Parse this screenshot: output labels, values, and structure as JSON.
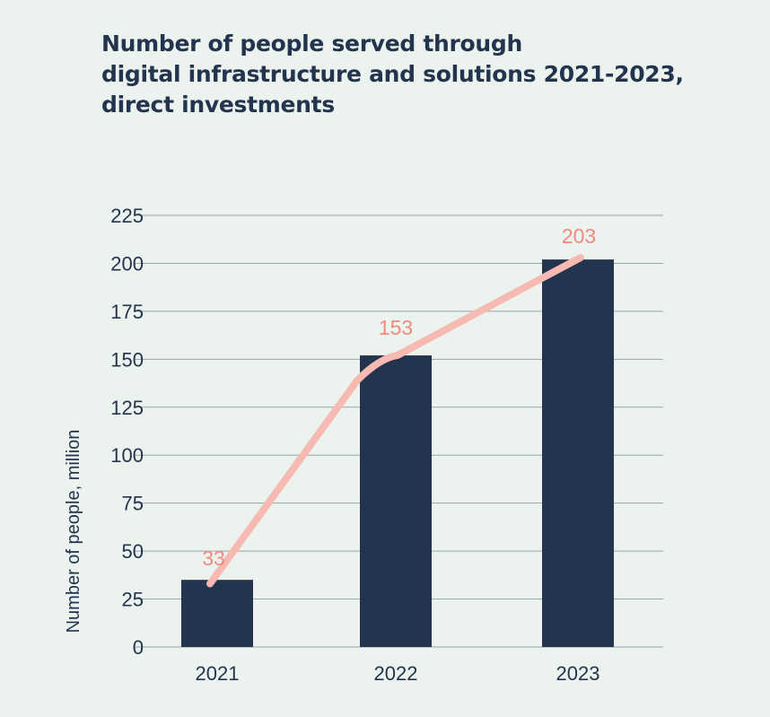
{
  "title_lines": [
    "Number of people served through",
    "digital infrastructure and solutions 2021-2023,",
    "direct investments"
  ],
  "chart_data": {
    "type": "bar",
    "title": "Number of people served through digital infrastructure and solutions 2021-2023, direct investments",
    "categories": [
      "2021",
      "2022",
      "2023"
    ],
    "series": [
      {
        "type": "bar",
        "values": [
          35,
          152,
          202
        ]
      },
      {
        "type": "line",
        "values": [
          33,
          153,
          203
        ]
      }
    ],
    "data_labels": [
      "33",
      "153",
      "203"
    ],
    "xlabel": "",
    "ylabel": "Number of people, million",
    "ylim": [
      0,
      225
    ],
    "yticks": [
      0,
      25,
      50,
      75,
      100,
      125,
      150,
      175,
      200,
      225
    ],
    "grid": true,
    "legend": "none"
  },
  "colors": {
    "background": "#ecf3ef",
    "bar": "#22344e",
    "line": "#f7bab3",
    "data_label": "#ee8a7f",
    "grid": "#9aa3a6",
    "text": "#22344e"
  }
}
